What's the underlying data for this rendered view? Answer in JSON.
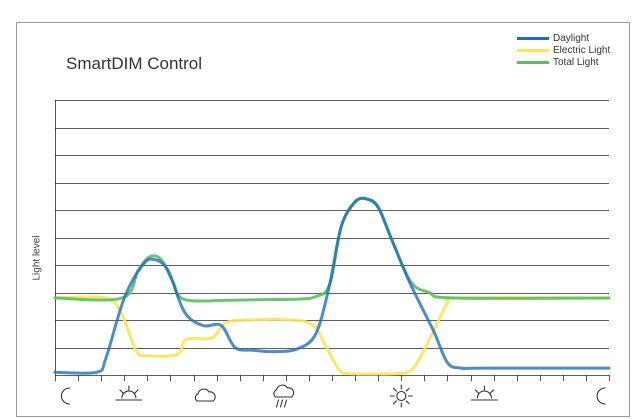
{
  "chart_data": {
    "type": "line",
    "title": "SmartDIM Control",
    "xlabel": "",
    "ylabel": "Light level",
    "grid": true,
    "legend_position": "top-right",
    "ylim": [
      0,
      10
    ],
    "xlim": [
      0,
      24
    ],
    "x_ticks": [
      0,
      1,
      2,
      3,
      4,
      5,
      6,
      7,
      8,
      9,
      10,
      11,
      12,
      13,
      14,
      15,
      16,
      17,
      18,
      19,
      20,
      21,
      22,
      23,
      24
    ],
    "x_icons": [
      {
        "x": 0.5,
        "icon": "moon-icon"
      },
      {
        "x": 3.2,
        "icon": "sunrise-icon"
      },
      {
        "x": 6.5,
        "icon": "cloud-icon"
      },
      {
        "x": 9.9,
        "icon": "rain-cloud-icon"
      },
      {
        "x": 15.0,
        "icon": "sun-icon"
      },
      {
        "x": 18.6,
        "icon": "sunset-icon"
      },
      {
        "x": 23.7,
        "icon": "moon-icon"
      }
    ],
    "series": [
      {
        "name": "Daylight",
        "color": "#1f6fbf",
        "points": [
          [
            0,
            0.1
          ],
          [
            1.8,
            0.1
          ],
          [
            2.2,
            0.6
          ],
          [
            3.0,
            2.8
          ],
          [
            3.8,
            4.0
          ],
          [
            4.3,
            4.2
          ],
          [
            4.9,
            3.8
          ],
          [
            5.6,
            2.3
          ],
          [
            6.4,
            1.8
          ],
          [
            7.2,
            1.8
          ],
          [
            7.8,
            1.0
          ],
          [
            8.6,
            0.9
          ],
          [
            9.5,
            0.85
          ],
          [
            10.5,
            0.95
          ],
          [
            11.3,
            1.5
          ],
          [
            11.9,
            3.3
          ],
          [
            12.4,
            5.4
          ],
          [
            13.0,
            6.3
          ],
          [
            13.5,
            6.4
          ],
          [
            14.0,
            6.1
          ],
          [
            14.6,
            4.9
          ],
          [
            15.4,
            3.3
          ],
          [
            16.4,
            1.6
          ],
          [
            17.0,
            0.45
          ],
          [
            17.6,
            0.25
          ],
          [
            18.5,
            0.25
          ],
          [
            24.0,
            0.25
          ]
        ]
      },
      {
        "name": "Electric Light",
        "color": "#fbe35c",
        "points": [
          [
            0,
            2.8
          ],
          [
            2.2,
            2.8
          ],
          [
            2.9,
            2.2
          ],
          [
            3.5,
            0.9
          ],
          [
            4.0,
            0.7
          ],
          [
            5.3,
            0.75
          ],
          [
            5.7,
            1.3
          ],
          [
            6.8,
            1.35
          ],
          [
            7.4,
            1.9
          ],
          [
            8.4,
            2.0
          ],
          [
            10.3,
            2.0
          ],
          [
            11.2,
            1.8
          ],
          [
            11.7,
            1.1
          ],
          [
            12.3,
            0.2
          ],
          [
            12.8,
            0.05
          ],
          [
            14.8,
            0.05
          ],
          [
            15.4,
            0.15
          ],
          [
            15.8,
            0.6
          ],
          [
            16.4,
            1.6
          ],
          [
            17.0,
            2.6
          ],
          [
            17.5,
            2.8
          ],
          [
            24.0,
            2.8
          ]
        ]
      },
      {
        "name": "Total Light",
        "color": "#5cbf5c",
        "points": [
          [
            0,
            2.8
          ],
          [
            2.9,
            2.8
          ],
          [
            3.6,
            3.8
          ],
          [
            4.1,
            4.3
          ],
          [
            4.6,
            4.2
          ],
          [
            5.1,
            3.4
          ],
          [
            5.6,
            2.75
          ],
          [
            7.5,
            2.72
          ],
          [
            9.0,
            2.74
          ],
          [
            10.5,
            2.76
          ],
          [
            11.3,
            2.85
          ],
          [
            11.9,
            3.3
          ],
          [
            12.4,
            5.4
          ],
          [
            13.0,
            6.3
          ],
          [
            13.5,
            6.4
          ],
          [
            14.0,
            6.1
          ],
          [
            14.6,
            4.9
          ],
          [
            15.4,
            3.4
          ],
          [
            16.2,
            3.0
          ],
          [
            17.3,
            2.8
          ],
          [
            24.0,
            2.8
          ]
        ]
      }
    ]
  }
}
